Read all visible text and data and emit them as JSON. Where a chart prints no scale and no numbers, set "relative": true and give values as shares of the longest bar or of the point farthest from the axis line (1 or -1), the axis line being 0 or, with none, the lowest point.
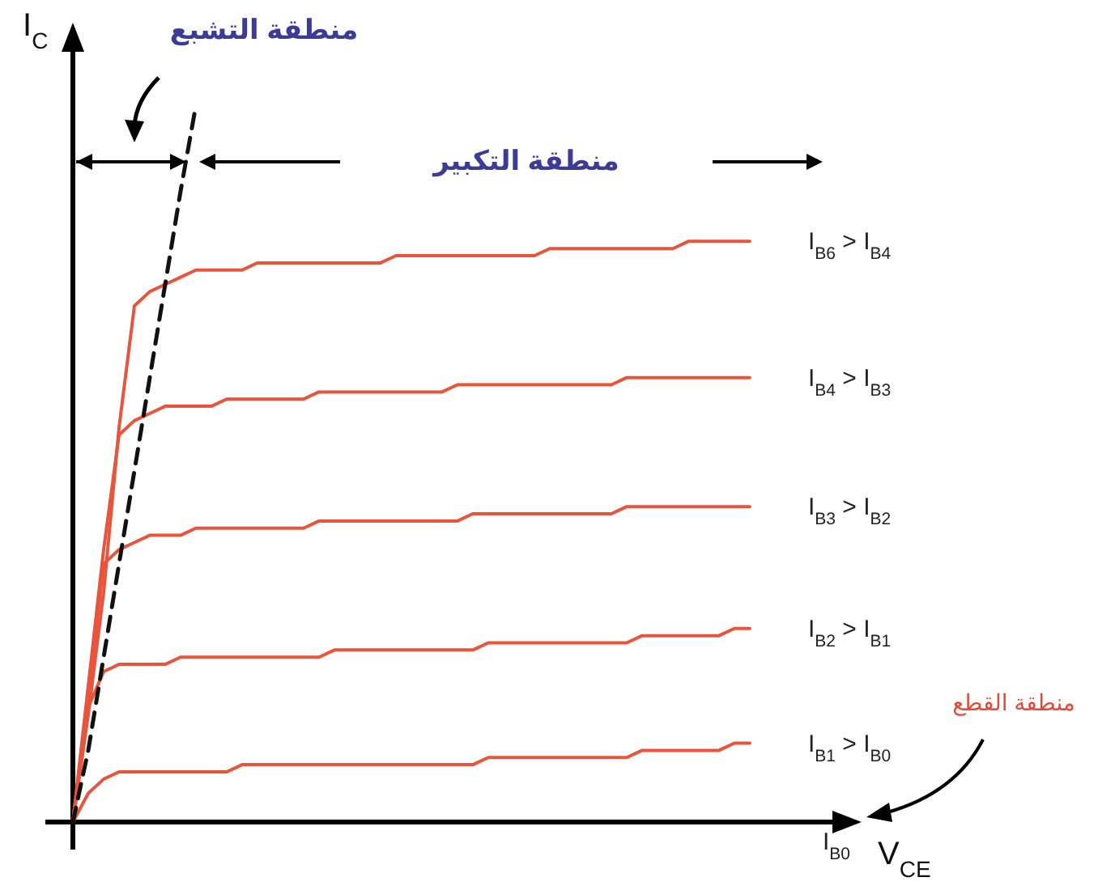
{
  "chart_data": {
    "type": "line",
    "relative": true,
    "xlabel": "V$_{CE}$",
    "ylabel": "I$_{C}$",
    "categories": [
      null,
      null,
      null,
      null,
      null,
      null,
      null,
      null,
      null,
      null,
      null,
      null,
      null,
      null,
      null,
      null,
      null,
      null,
      null,
      null,
      null,
      null,
      null,
      null,
      null,
      null,
      null,
      null,
      null,
      null,
      null,
      null,
      null,
      null,
      null,
      null,
      null,
      null,
      null,
      null,
      null,
      null,
      null,
      null,
      null
    ],
    "series": [
      {
        "name": "I$_{B6}$ > I$_{B4}$",
        "color": "#e8543c",
        "values": [
          0,
          0.15,
          0.32,
          0.55,
          0.72,
          0.74,
          0.75,
          0.76,
          0.77,
          0.77,
          0.77,
          0.77,
          0.78,
          0.78,
          0.78,
          0.78,
          0.78,
          0.78,
          0.78,
          0.78,
          0.78,
          0.79,
          0.79,
          0.79,
          0.79,
          0.79,
          0.79,
          0.79,
          0.79,
          0.79,
          0.79,
          0.8,
          0.8,
          0.8,
          0.8,
          0.8,
          0.8,
          0.8,
          0.8,
          0.8,
          0.81,
          0.81,
          0.81,
          0.81,
          0.81
        ]
      },
      {
        "name": "I$_{B4}$ > I$_{B3}$",
        "color": "#e8543c",
        "values": [
          0,
          0.19,
          0.38,
          0.54,
          0.56,
          0.57,
          0.58,
          0.58,
          0.58,
          0.58,
          0.59,
          0.59,
          0.59,
          0.59,
          0.59,
          0.59,
          0.6,
          0.6,
          0.6,
          0.6,
          0.6,
          0.6,
          0.6,
          0.6,
          0.6,
          0.61,
          0.61,
          0.61,
          0.61,
          0.61,
          0.61,
          0.61,
          0.61,
          0.61,
          0.61,
          0.61,
          0.62,
          0.62,
          0.62,
          0.62,
          0.62,
          0.62,
          0.62,
          0.62,
          0.62
        ]
      },
      {
        "name": "I$_{B3}$ > I$_{B2}$",
        "color": "#e8543c",
        "values": [
          0,
          0.17,
          0.36,
          0.38,
          0.39,
          0.4,
          0.4,
          0.4,
          0.41,
          0.41,
          0.41,
          0.41,
          0.41,
          0.41,
          0.41,
          0.41,
          0.42,
          0.42,
          0.42,
          0.42,
          0.42,
          0.42,
          0.42,
          0.42,
          0.42,
          0.42,
          0.43,
          0.43,
          0.43,
          0.43,
          0.43,
          0.43,
          0.43,
          0.43,
          0.43,
          0.43,
          0.44,
          0.44,
          0.44,
          0.44,
          0.44,
          0.44,
          0.44,
          0.44,
          0.44
        ]
      },
      {
        "name": "I$_{B2}$ > I$_{B1}$",
        "color": "#e8543c",
        "values": [
          0,
          0.16,
          0.21,
          0.22,
          0.22,
          0.22,
          0.22,
          0.23,
          0.23,
          0.23,
          0.23,
          0.23,
          0.23,
          0.23,
          0.23,
          0.23,
          0.23,
          0.24,
          0.24,
          0.24,
          0.24,
          0.24,
          0.24,
          0.24,
          0.24,
          0.24,
          0.24,
          0.25,
          0.25,
          0.25,
          0.25,
          0.25,
          0.25,
          0.25,
          0.25,
          0.25,
          0.25,
          0.26,
          0.26,
          0.26,
          0.26,
          0.26,
          0.26,
          0.27,
          0.27
        ]
      },
      {
        "name": "I$_{B1}$ > I$_{B0}$",
        "color": "#e8543c",
        "values": [
          0,
          0.04,
          0.06,
          0.07,
          0.07,
          0.07,
          0.07,
          0.07,
          0.07,
          0.07,
          0.07,
          0.08,
          0.08,
          0.08,
          0.08,
          0.08,
          0.08,
          0.08,
          0.08,
          0.08,
          0.08,
          0.08,
          0.08,
          0.08,
          0.08,
          0.08,
          0.08,
          0.09,
          0.09,
          0.09,
          0.09,
          0.09,
          0.09,
          0.09,
          0.09,
          0.09,
          0.09,
          0.1,
          0.1,
          0.1,
          0.1,
          0.1,
          0.1,
          0.11,
          0.11
        ]
      },
      {
        "color": "#111111",
        "line_style": "dashed",
        "values": [
          0,
          0.1,
          0.23,
          0.36,
          0.49,
          0.62,
          0.75,
          0.88,
          1,
          null,
          null,
          null,
          null,
          null,
          null,
          null,
          null,
          null,
          null,
          null,
          null,
          null,
          null,
          null,
          null,
          null,
          null,
          null,
          null,
          null,
          null,
          null,
          null,
          null,
          null,
          null,
          null,
          null,
          null,
          null,
          null,
          null,
          null,
          null,
          null
        ]
      }
    ],
    "annotations": [
      "منطقة التشبع",
      "منطقة التكبير",
      "منطقة القطع",
      "I$_{B0}$"
    ]
  }
}
